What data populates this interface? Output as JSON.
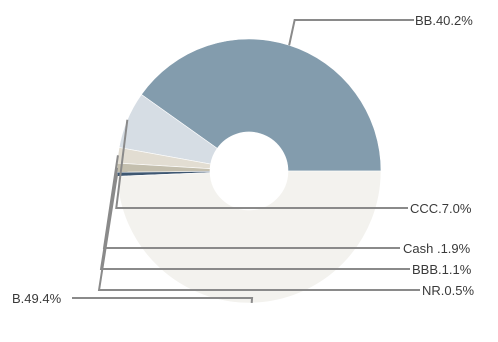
{
  "chart_data": {
    "type": "pie",
    "donut": true,
    "title": "",
    "legend": "none",
    "slices": [
      {
        "label": "BB.40.2%",
        "value": 40.2,
        "color": "#839cad"
      },
      {
        "label": "CCC.7.0%",
        "value": 7.0,
        "color": "#d6dde4"
      },
      {
        "label": "Cash .1.9%",
        "value": 1.9,
        "color": "#e2ddd2"
      },
      {
        "label": "BBB.1.1%",
        "value": 1.1,
        "color": "#c4bfae"
      },
      {
        "label": "NR.0.5%",
        "value": 0.5,
        "color": "#3e5771"
      },
      {
        "label": "B.49.4%",
        "value": 49.4,
        "color": "#f3f2ee"
      }
    ]
  }
}
